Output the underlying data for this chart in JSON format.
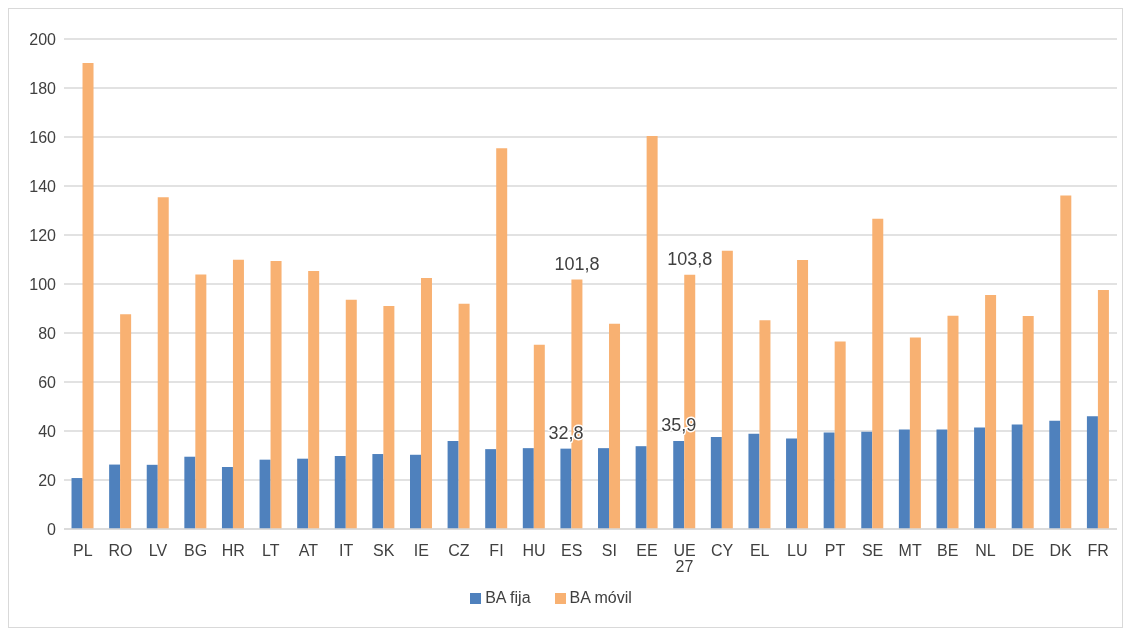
{
  "chart_data": {
    "type": "bar",
    "categories": [
      "PL",
      "RO",
      "LV",
      "BG",
      "HR",
      "LT",
      "AT",
      "IT",
      "SK",
      "IE",
      "CZ",
      "FI",
      "HU",
      "ES",
      "SI",
      "EE",
      "UE 27",
      "CY",
      "EL",
      "LU",
      "PT",
      "SE",
      "MT",
      "BE",
      "NL",
      "DE",
      "DK",
      "FR"
    ],
    "series": [
      {
        "name": "BA fija",
        "color": "#4f81bd",
        "values": [
          20.8,
          26.3,
          26.2,
          29.5,
          25.3,
          28.3,
          28.7,
          29.8,
          30.6,
          30.3,
          35.9,
          32.6,
          33.0,
          32.8,
          33.0,
          33.8,
          35.9,
          37.6,
          38.9,
          36.9,
          39.4,
          39.7,
          40.6,
          40.6,
          41.4,
          42.7,
          44.2,
          46.0
        ],
        "value_labels": [
          null,
          null,
          null,
          null,
          null,
          null,
          null,
          null,
          null,
          null,
          null,
          null,
          null,
          "32,8",
          null,
          null,
          "35,9",
          null,
          null,
          null,
          null,
          null,
          null,
          null,
          null,
          null,
          null,
          null
        ]
      },
      {
        "name": "BA móvil",
        "color": "#f8b172",
        "values": [
          190.2,
          87.7,
          135.4,
          103.9,
          109.9,
          109.4,
          105.3,
          93.6,
          91.0,
          102.5,
          91.9,
          155.4,
          75.2,
          101.8,
          83.8,
          160.4,
          103.8,
          113.6,
          85.2,
          109.8,
          76.5,
          126.6,
          78.2,
          87.0,
          95.5,
          86.9,
          136.1,
          97.6
        ],
        "value_labels": [
          null,
          null,
          null,
          null,
          null,
          null,
          null,
          null,
          null,
          null,
          null,
          null,
          null,
          "101,8",
          null,
          null,
          "103,8",
          null,
          null,
          null,
          null,
          null,
          null,
          null,
          null,
          null,
          null,
          null
        ]
      }
    ],
    "ylim": [
      0,
      200
    ],
    "yticks": [
      0,
      20,
      40,
      60,
      80,
      100,
      120,
      140,
      160,
      180,
      200
    ],
    "grid": "y",
    "legend": "bottom"
  }
}
